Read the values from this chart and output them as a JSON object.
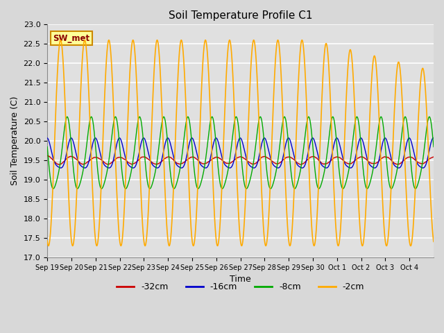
{
  "title": "Soil Temperature Profile C1",
  "xlabel": "Time",
  "ylabel": "Soil Temperature (C)",
  "ylim": [
    17.0,
    23.0
  ],
  "yticks": [
    17.0,
    17.5,
    18.0,
    18.5,
    19.0,
    19.5,
    20.0,
    20.5,
    21.0,
    21.5,
    22.0,
    22.5,
    23.0
  ],
  "legend_label": "SW_met",
  "series_labels": [
    "-32cm",
    "-16cm",
    "-8cm",
    "-2cm"
  ],
  "series_colors": [
    "#cc0000",
    "#0000cc",
    "#00aa00",
    "#ffaa00"
  ],
  "fig_bg_color": "#d8d8d8",
  "plot_bg_color": "#e0e0e0",
  "grid_color": "#ffffff",
  "xtick_labels": [
    "Sep 19",
    "Sep 20",
    "Sep 21",
    "Sep 22",
    "Sep 23",
    "Sep 24",
    "Sep 25",
    "Sep 26",
    "Sep 27",
    "Sep 28",
    "Sep 29",
    "Sep 30",
    "Oct 1",
    "Oct 2",
    "Oct 3",
    "Oct 4"
  ],
  "num_points": 2000,
  "total_days": 16
}
